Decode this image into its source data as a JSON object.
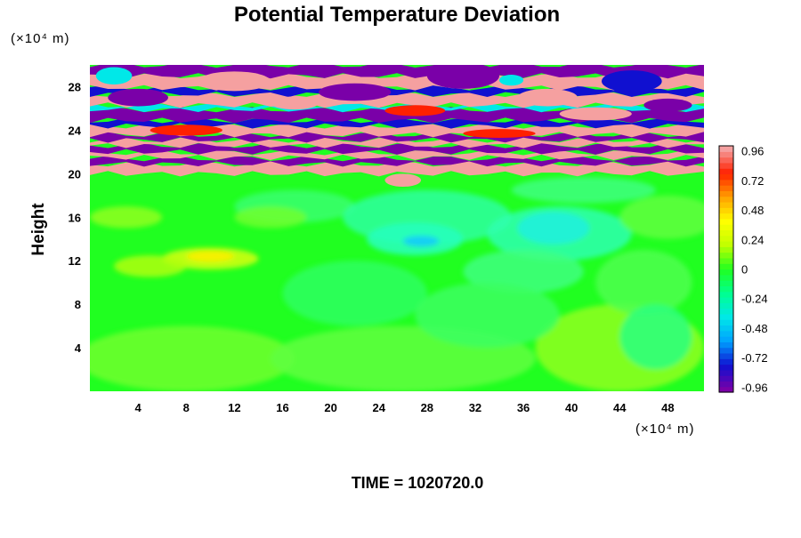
{
  "chart_data": {
    "type": "heatmap",
    "title": "Potential Temperature Deviation",
    "ylabel": "Height",
    "y_unit": "(×10⁴ m)",
    "x_unit": "(×10⁴ m)",
    "xlim": [
      0,
      51
    ],
    "ylim": [
      0,
      30
    ],
    "x_ticks": [
      4,
      8,
      12,
      16,
      20,
      24,
      28,
      32,
      36,
      40,
      44,
      48
    ],
    "y_ticks": [
      4,
      8,
      12,
      16,
      20,
      24,
      28
    ],
    "colorbar": {
      "min": -1.0,
      "max": 1.0,
      "tick_values": [
        0.96,
        0.72,
        0.48,
        0.24,
        0,
        -0.24,
        -0.48,
        -0.72,
        -0.96
      ],
      "tick_labels": [
        "0.96",
        "0.72",
        "0.48",
        "0.24",
        "0",
        "-0.24",
        "-0.48",
        "-0.72",
        "-0.96"
      ],
      "colors": [
        "#7a00a8",
        "#1010d0",
        "#00a0ff",
        "#00e8e8",
        "#00ff90",
        "#20ff20",
        "#c0ff00",
        "#ffff00",
        "#ffa000",
        "#ff2000",
        "#f5a0a0"
      ]
    },
    "annotation": "TIME = 1020720.0",
    "legend": "right",
    "grid": false
  }
}
